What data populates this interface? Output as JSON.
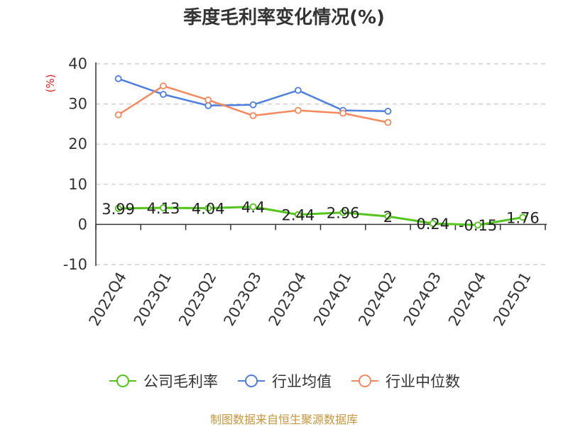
{
  "chart_data": {
    "type": "line",
    "title": "季度毛利率变化情况(%)",
    "ylabel": "(%)",
    "categories": [
      "2022Q4",
      "2023Q1",
      "2023Q2",
      "2023Q3",
      "2023Q4",
      "2024Q1",
      "2024Q2",
      "2024Q3",
      "2024Q4",
      "2025Q1"
    ],
    "ylim": [
      -10,
      40
    ],
    "yticks": [
      "-10",
      "0",
      "10",
      "20",
      "30",
      "40"
    ],
    "grid": true,
    "legend_position": "bottom",
    "series": [
      {
        "name": "公司毛利率",
        "color": "#52c41a",
        "values": [
          3.99,
          4.13,
          4.04,
          4.4,
          2.44,
          2.96,
          2,
          0.24,
          -0.15,
          1.76
        ],
        "labels": [
          "3.99",
          "4.13",
          "4.04",
          "4.4",
          "2.44",
          "2.96",
          "2",
          "0.24",
          "-0.15",
          "1.76"
        ]
      },
      {
        "name": "行业均值",
        "color": "#4e7fdf",
        "values": [
          36.3,
          32.4,
          29.6,
          29.8,
          33.4,
          28.4,
          28.2,
          null,
          null,
          null
        ]
      },
      {
        "name": "行业中位数",
        "color": "#f5895e",
        "values": [
          27.3,
          34.5,
          31.0,
          27.1,
          28.4,
          27.7,
          25.4,
          null,
          null,
          null
        ]
      }
    ]
  },
  "source_note": "制图数据来自恒生聚源数据库"
}
